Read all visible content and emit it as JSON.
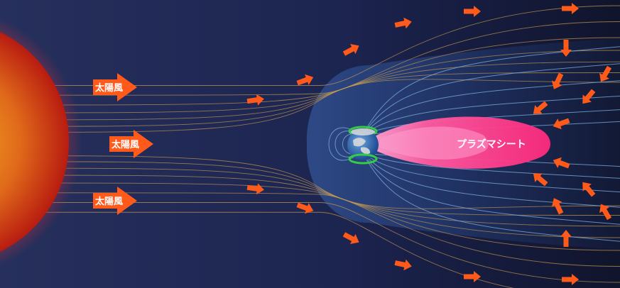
{
  "diagram": {
    "solar_wind_labels": [
      "太陽風",
      "太陽風",
      "太陽風"
    ],
    "plasma_sheet_label": "プラズマシート"
  },
  "colors": {
    "background_left": "#27305c",
    "background_mid": "#1c2450",
    "background_right": "#10142c",
    "sun_core": "#f2a020",
    "sun_edge": "#c02010",
    "sun_corona": "#a83048",
    "solar_wind_lines": "#c89a50",
    "magnetosphere_fill": "#2a4a8a",
    "magnetosphere_lines": "#7fb0e0",
    "plasma_sheet": "#ff3f8e",
    "plasma_sheet_inner": "#ff8ac0",
    "arrow": "#ff5a1a",
    "auroral_ring": "#33cc44"
  },
  "icons": {
    "sun": "sun-icon",
    "earth": "earth-globe-icon",
    "arrow": "arrow-right-icon"
  }
}
